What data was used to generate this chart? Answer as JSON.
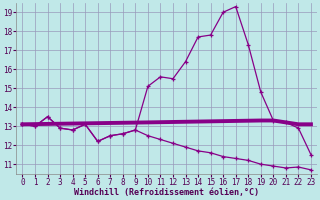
{
  "xlabel": "Windchill (Refroidissement éolien,°C)",
  "bg_color": "#c0e8e8",
  "grid_color": "#9999bb",
  "line_color": "#880088",
  "x_ticks": [
    0,
    1,
    2,
    3,
    4,
    5,
    6,
    7,
    8,
    9,
    10,
    11,
    12,
    13,
    14,
    15,
    16,
    17,
    18,
    19,
    20,
    21,
    22,
    23
  ],
  "y_ticks": [
    11,
    12,
    13,
    14,
    15,
    16,
    17,
    18,
    19
  ],
  "xlim": [
    -0.5,
    23.5
  ],
  "ylim": [
    10.5,
    19.5
  ],
  "curve1_x": [
    0,
    1,
    2,
    3,
    4,
    5,
    6,
    7,
    8,
    9,
    10,
    11,
    12,
    13,
    14,
    15,
    16,
    17,
    18,
    19,
    20,
    21,
    22,
    23
  ],
  "curve1_y": [
    13.1,
    13.0,
    13.5,
    12.9,
    12.8,
    13.1,
    12.2,
    12.5,
    12.6,
    12.8,
    15.1,
    15.6,
    15.5,
    16.4,
    17.7,
    17.8,
    19.0,
    19.3,
    17.3,
    14.8,
    13.3,
    13.2,
    12.9,
    11.5
  ],
  "curve2_x": [
    0,
    1,
    2,
    3,
    4,
    5,
    6,
    7,
    8,
    9,
    10,
    11,
    12,
    13,
    14,
    15,
    16,
    17,
    18,
    19,
    20,
    21,
    22,
    23
  ],
  "curve2_y": [
    13.1,
    13.0,
    13.5,
    12.9,
    12.8,
    13.1,
    12.2,
    12.5,
    12.6,
    12.8,
    12.5,
    12.3,
    12.1,
    11.9,
    11.7,
    11.6,
    11.4,
    11.3,
    11.2,
    11.0,
    10.9,
    10.8,
    10.85,
    10.7
  ],
  "curve3_x": [
    0,
    10,
    19,
    20,
    21,
    22,
    23
  ],
  "curve3_y": [
    13.1,
    13.2,
    13.3,
    13.3,
    13.2,
    13.1,
    13.1
  ]
}
